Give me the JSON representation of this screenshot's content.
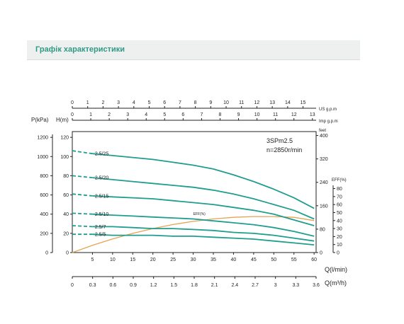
{
  "header": {
    "title": "Графік характеристики"
  },
  "chart_data": {
    "type": "line",
    "model": "3SPm2.5",
    "speed": "n=2850r/min",
    "colors": {
      "head": "#1f9e8f",
      "eff": "#e8a254",
      "axis": "#222222"
    },
    "axes": {
      "q_lmin": {
        "label": "Q(l/min)",
        "ticks": [
          5,
          10,
          15,
          20,
          25,
          30,
          35,
          40,
          45,
          50,
          55,
          60
        ],
        "range": [
          0,
          60
        ]
      },
      "q_m3h": {
        "label": "Q(m³/h)",
        "ticks": [
          "0",
          "0.3",
          "0.6",
          "0.9",
          "1.2",
          "1.5",
          "1.8",
          "2.1",
          "2.4",
          "2.7",
          "3",
          "3.3",
          "3.6"
        ],
        "range": [
          0,
          3.6
        ]
      },
      "us_gpm": {
        "label": "US g.p.m",
        "ticks": [
          "0",
          "1",
          "2",
          "3",
          "4",
          "5",
          "6",
          "7",
          "8",
          "9",
          "10",
          "11",
          "12",
          "13",
          "14",
          "15"
        ],
        "range": [
          0,
          15.85
        ]
      },
      "imp_gpm": {
        "label": "Imp g.p.m",
        "ticks": [
          "0",
          "1",
          "2",
          "3",
          "4",
          "5",
          "6",
          "7",
          "8",
          "9",
          "10",
          "11",
          "12",
          "13"
        ],
        "range": [
          0,
          13.2
        ]
      },
      "pressure_kpa": {
        "label": "P(kPa)",
        "ticks": [
          "0",
          "200",
          "400",
          "600",
          "800",
          "1000",
          "1200"
        ]
      },
      "head_m": {
        "label": "H(m)",
        "ticks": [
          "0",
          "20",
          "40",
          "60",
          "80",
          "100",
          "120"
        ],
        "range": [
          0,
          126
        ]
      },
      "feet": {
        "label": "feet",
        "ticks": [
          "0",
          "80",
          "160",
          "240",
          "320",
          "400"
        ]
      },
      "eff": {
        "label": "EFF(%)",
        "ticks": [
          "0",
          "10",
          "20",
          "30",
          "40",
          "50",
          "60",
          "70",
          "80"
        ],
        "range": [
          0,
          84
        ]
      }
    },
    "series": [
      {
        "name": "2.5/25",
        "x": [
          0,
          5,
          10,
          15,
          20,
          25,
          30,
          35,
          40,
          45,
          50,
          55,
          60
        ],
        "y": [
          106,
          103,
          101,
          99,
          97,
          94,
          91,
          87,
          81,
          74,
          66,
          57,
          46
        ]
      },
      {
        "name": "2.5/20",
        "x": [
          0,
          5,
          10,
          15,
          20,
          25,
          30,
          35,
          40,
          45,
          50,
          55,
          60
        ],
        "y": [
          80,
          78,
          76,
          74,
          72,
          70,
          68,
          65,
          61,
          56,
          50,
          44,
          35
        ]
      },
      {
        "name": "2.5/15",
        "x": [
          0,
          5,
          10,
          15,
          20,
          25,
          30,
          35,
          40,
          45,
          50,
          55,
          60
        ],
        "y": [
          61,
          59,
          58,
          57,
          56,
          54,
          52,
          50,
          47,
          44,
          40,
          34,
          28
        ]
      },
      {
        "name": "2.5/10",
        "x": [
          0,
          5,
          10,
          15,
          20,
          25,
          30,
          35,
          40,
          45,
          50,
          55,
          60
        ],
        "y": [
          41,
          40,
          39,
          38,
          37,
          36,
          35,
          33,
          31,
          29,
          26,
          22,
          17
        ]
      },
      {
        "name": "2.5/7",
        "x": [
          0,
          5,
          10,
          15,
          20,
          25,
          30,
          35,
          40,
          45,
          50,
          55,
          60
        ],
        "y": [
          28,
          27,
          27,
          26,
          25,
          25,
          24,
          23,
          21,
          20,
          18,
          15,
          12
        ]
      },
      {
        "name": "2.5/5",
        "x": [
          0,
          5,
          10,
          15,
          20,
          25,
          30,
          35,
          40,
          45,
          50,
          55,
          60
        ],
        "y": [
          19,
          19,
          18,
          18,
          18,
          17,
          17,
          16,
          15,
          14,
          12,
          10,
          8
        ]
      }
    ],
    "efficiency": {
      "name": "EFF(%)",
      "x": [
        0,
        5,
        10,
        15,
        20,
        25,
        30,
        35,
        40,
        45,
        50,
        55,
        60
      ],
      "y": [
        0,
        9,
        17,
        24,
        30,
        35,
        39,
        42,
        44,
        45,
        45,
        44,
        40
      ]
    }
  }
}
